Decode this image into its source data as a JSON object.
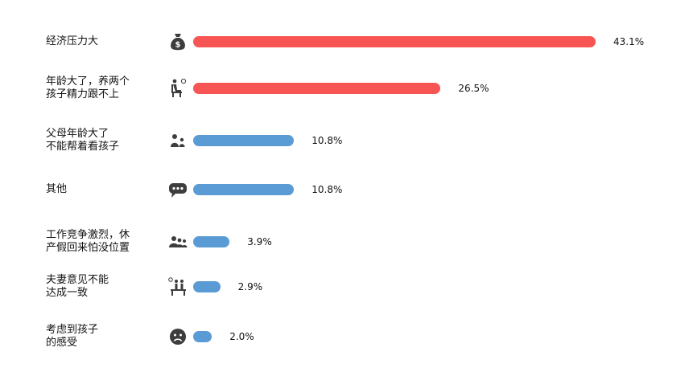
{
  "colors": {
    "highlight": "#F75454",
    "normal": "#5A9BD5",
    "icon": "#3d3d3d"
  },
  "chart_data": {
    "type": "bar",
    "orientation": "horizontal",
    "categories": [
      [
        "经济压力大"
      ],
      [
        "年龄大了，养两个",
        "孩子精力跟不上"
      ],
      [
        "父母年龄大了",
        "不能帮着看孩子"
      ],
      [
        "其他"
      ],
      [
        "工作竞争激烈，休",
        "产假回来怕没位置"
      ],
      [
        "夫妻意见不能",
        "达成一致"
      ],
      [
        "考虑到孩子",
        "的感受"
      ]
    ],
    "values": [
      43.1,
      26.5,
      10.8,
      10.8,
      3.9,
      2.9,
      2.0
    ],
    "value_labels": [
      "43.1%",
      "26.5%",
      "10.8%",
      "10.8%",
      "3.9%",
      "2.9%",
      "2.0%"
    ],
    "bar_colors": [
      "#F75454",
      "#F75454",
      "#5A9BD5",
      "#5A9BD5",
      "#5A9BD5",
      "#5A9BD5",
      "#5A9BD5"
    ],
    "icons": [
      "money-bag-icon",
      "elderly-person-icon",
      "parent-child-icon",
      "speech-bubble-icon",
      "office-workers-icon",
      "couple-icon",
      "sad-face-icon"
    ],
    "xlim": [
      0,
      43.1
    ],
    "grid": false,
    "legend": "none"
  }
}
